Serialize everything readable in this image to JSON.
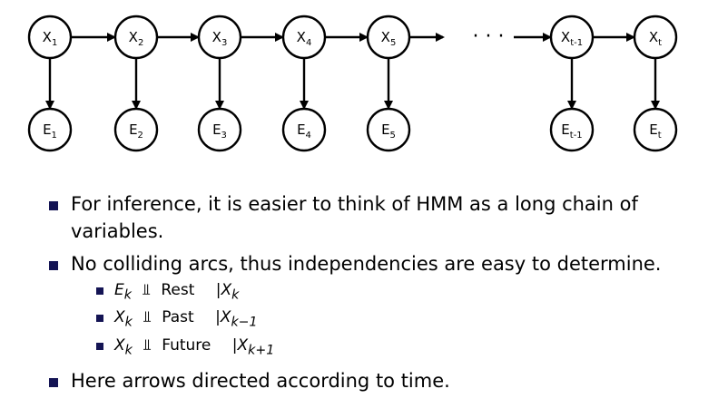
{
  "diagram": {
    "hidden_nodes": [
      {
        "base": "X",
        "sub": "1"
      },
      {
        "base": "X",
        "sub": "2"
      },
      {
        "base": "X",
        "sub": "3"
      },
      {
        "base": "X",
        "sub": "4"
      },
      {
        "base": "X",
        "sub": "5"
      },
      {
        "base": "X",
        "sub": "t-1"
      },
      {
        "base": "X",
        "sub": "t"
      }
    ],
    "evidence_nodes": [
      {
        "base": "E",
        "sub": "1"
      },
      {
        "base": "E",
        "sub": "2"
      },
      {
        "base": "E",
        "sub": "3"
      },
      {
        "base": "E",
        "sub": "4"
      },
      {
        "base": "E",
        "sub": "5"
      },
      {
        "base": "E",
        "sub": "t-1"
      },
      {
        "base": "E",
        "sub": "t"
      }
    ],
    "ellipsis": "· · ·"
  },
  "bullets": {
    "item1": "For inference, it is easier to think of HMM as a long chain of variables.",
    "item2": "No colliding arcs, thus independencies are easy to determine.",
    "sub": [
      {
        "var": "E",
        "var_sub": "k",
        "indep": "⫫",
        "rest": "Rest",
        "given": "|X",
        "given_sub": "k"
      },
      {
        "var": "X",
        "var_sub": "k",
        "indep": "⫫",
        "rest": "Past",
        "given": "|X",
        "given_sub": "k−1"
      },
      {
        "var": "X",
        "var_sub": "k",
        "indep": "⫫",
        "rest": "Future",
        "given": "|X",
        "given_sub": "k+1"
      }
    ],
    "item3": "Here arrows directed according to time."
  }
}
